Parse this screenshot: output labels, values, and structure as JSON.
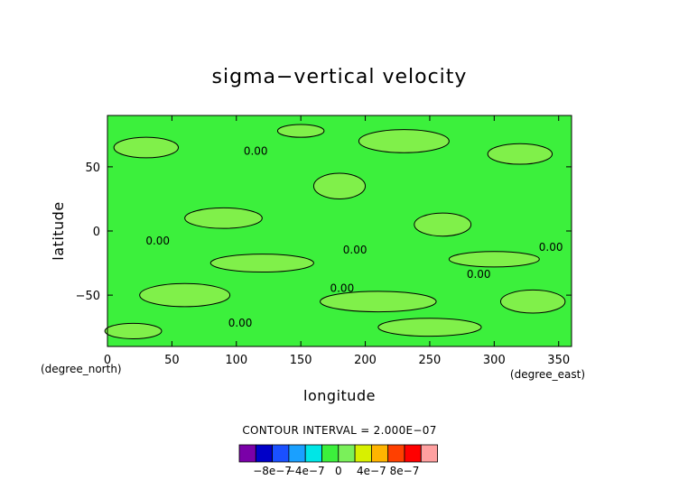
{
  "chart_data": {
    "type": "contour",
    "title": "sigma−vertical velocity",
    "xlabel": "longitude",
    "ylabel": "latitude",
    "x_unit": "(degree_east)",
    "y_unit": "(degree_north)",
    "xlim": [
      0,
      360
    ],
    "ylim": [
      -90,
      90
    ],
    "x_ticks": [
      {
        "value": 0,
        "label": "0"
      },
      {
        "value": 50,
        "label": "50"
      },
      {
        "value": 100,
        "label": "100"
      },
      {
        "value": 150,
        "label": "150"
      },
      {
        "value": 200,
        "label": "200"
      },
      {
        "value": 250,
        "label": "250"
      },
      {
        "value": 300,
        "label": "300"
      },
      {
        "value": 350,
        "label": "350"
      }
    ],
    "y_ticks": [
      {
        "value": 50,
        "label": "50"
      },
      {
        "value": 0,
        "label": "0"
      },
      {
        "value": -50,
        "label": "−50"
      }
    ],
    "contour_interval_text": "CONTOUR INTERVAL = 2.000E−07",
    "background_color": "#3cf03c",
    "contour_color": "#000000",
    "positive_region_color": "#80f04a",
    "contour_labels": [
      {
        "text": "0.00",
        "lon": 115,
        "lat": 62
      },
      {
        "text": "0.00",
        "lon": 39,
        "lat": -8
      },
      {
        "text": "0.00",
        "lon": 192,
        "lat": -15
      },
      {
        "text": "0.00",
        "lon": 288,
        "lat": -34
      },
      {
        "text": "0.00",
        "lon": 344,
        "lat": -13
      },
      {
        "text": "0.00",
        "lon": 182,
        "lat": -45
      },
      {
        "text": "0.00",
        "lon": 103,
        "lat": -72
      }
    ],
    "positive_regions": [
      {
        "lon": 30,
        "lat": 65,
        "rlon": 25,
        "rlat": 8
      },
      {
        "lon": 150,
        "lat": 78,
        "rlon": 18,
        "rlat": 5
      },
      {
        "lon": 230,
        "lat": 70,
        "rlon": 35,
        "rlat": 9
      },
      {
        "lon": 320,
        "lat": 60,
        "rlon": 25,
        "rlat": 8
      },
      {
        "lon": 180,
        "lat": 35,
        "rlon": 20,
        "rlat": 10
      },
      {
        "lon": 90,
        "lat": 10,
        "rlon": 30,
        "rlat": 8
      },
      {
        "lon": 260,
        "lat": 5,
        "rlon": 22,
        "rlat": 9
      },
      {
        "lon": 120,
        "lat": -25,
        "rlon": 40,
        "rlat": 7
      },
      {
        "lon": 300,
        "lat": -22,
        "rlon": 35,
        "rlat": 6
      },
      {
        "lon": 60,
        "lat": -50,
        "rlon": 35,
        "rlat": 9
      },
      {
        "lon": 210,
        "lat": -55,
        "rlon": 45,
        "rlat": 8
      },
      {
        "lon": 330,
        "lat": -55,
        "rlon": 25,
        "rlat": 9
      },
      {
        "lon": 20,
        "lat": -78,
        "rlon": 22,
        "rlat": 6
      },
      {
        "lon": 250,
        "lat": -75,
        "rlon": 40,
        "rlat": 7
      }
    ],
    "colorbar": {
      "colors": [
        "#7a00a8",
        "#0000c8",
        "#1a50ff",
        "#1aa0ff",
        "#00e6e6",
        "#3cf03c",
        "#7af05a",
        "#d8f000",
        "#ffb400",
        "#ff4000",
        "#ff0000",
        "#ffa0a0"
      ],
      "tick_labels": [
        {
          "text": "−8e−7",
          "index": 1
        },
        {
          "text": "−4e−7",
          "index": 3
        },
        {
          "text": "0",
          "index": 5
        },
        {
          "text": "4e−7",
          "index": 7
        },
        {
          "text": "8e−7",
          "index": 9
        }
      ]
    }
  }
}
